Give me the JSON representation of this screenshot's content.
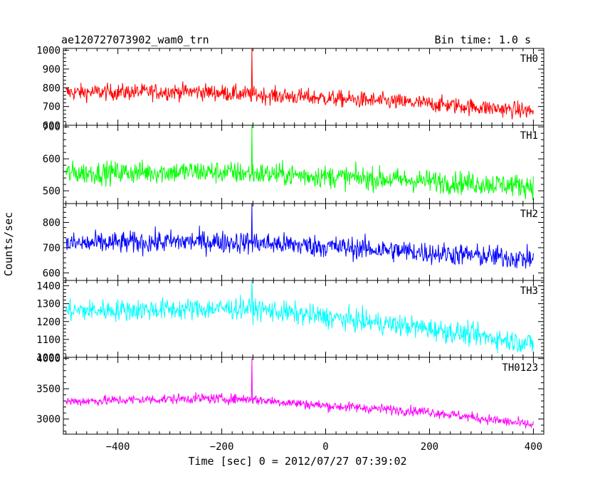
{
  "header": {
    "left": "ae120727073902_wam0_trn",
    "right": "Bin time: 1.0 s"
  },
  "axes": {
    "xlabel": "Time [sec] 0 = 2012/07/27 07:39:02",
    "ylabel": "Counts/sec"
  },
  "chart_data": {
    "type": "line",
    "title": "ae120727073902_wam0_trn",
    "subtitle": "Bin time: 1.0 s",
    "xlabel": "Time [sec] 0 = 2012/07/27 07:39:02",
    "ylabel": "Counts/sec",
    "xlim": [
      -505,
      420
    ],
    "xticks": [
      -400,
      -200,
      0,
      200,
      400
    ],
    "x_range_data": [
      -500,
      400
    ],
    "grid": false,
    "panels": [
      {
        "name": "TH0",
        "color": "#ff0000",
        "ylim": [
          600,
          1010
        ],
        "yticks": [
          600,
          700,
          800,
          900,
          1000
        ],
        "trend": [
          [
            -500,
            775
          ],
          [
            -250,
            780
          ],
          [
            -150,
            765
          ],
          [
            0,
            745
          ],
          [
            200,
            715
          ],
          [
            400,
            675
          ]
        ],
        "noise_amplitude": 40,
        "spike": {
          "x": -142,
          "y": 1010
        }
      },
      {
        "name": "TH1",
        "color": "#00ff00",
        "ylim": [
          460,
          705
        ],
        "yticks": [
          500,
          600,
          700
        ],
        "trend": [
          [
            -500,
            555
          ],
          [
            -250,
            560
          ],
          [
            -150,
            555
          ],
          [
            0,
            545
          ],
          [
            200,
            530
          ],
          [
            400,
            515
          ]
        ],
        "noise_amplitude": 32,
        "spike": {
          "x": -142,
          "y": 705
        }
      },
      {
        "name": "TH2",
        "color": "#0000ff",
        "ylim": [
          570,
          875
        ],
        "yticks": [
          600,
          700,
          800
        ],
        "trend": [
          [
            -500,
            715
          ],
          [
            -250,
            725
          ],
          [
            -150,
            720
          ],
          [
            0,
            705
          ],
          [
            200,
            680
          ],
          [
            400,
            655
          ]
        ],
        "noise_amplitude": 40,
        "spike": {
          "x": -142,
          "y": 875
        }
      },
      {
        "name": "TH3",
        "color": "#00ffff",
        "ylim": [
          1000,
          1430
        ],
        "yticks": [
          1000,
          1100,
          1200,
          1300,
          1400
        ],
        "trend": [
          [
            -500,
            1260
          ],
          [
            -250,
            1270
          ],
          [
            -150,
            1275
          ],
          [
            0,
            1225
          ],
          [
            200,
            1160
          ],
          [
            400,
            1075
          ]
        ],
        "noise_amplitude": 55,
        "spike": {
          "x": -142,
          "y": 1430
        }
      },
      {
        "name": "TH0123",
        "color": "#ff00ff",
        "ylim": [
          2750,
          4020
        ],
        "yticks": [
          3000,
          3500,
          4000
        ],
        "trend": [
          [
            -500,
            3290
          ],
          [
            -250,
            3340
          ],
          [
            -150,
            3330
          ],
          [
            0,
            3220
          ],
          [
            200,
            3120
          ],
          [
            400,
            2900
          ]
        ],
        "noise_amplitude": 75,
        "spike": {
          "x": -142,
          "y": 4000
        }
      }
    ]
  }
}
